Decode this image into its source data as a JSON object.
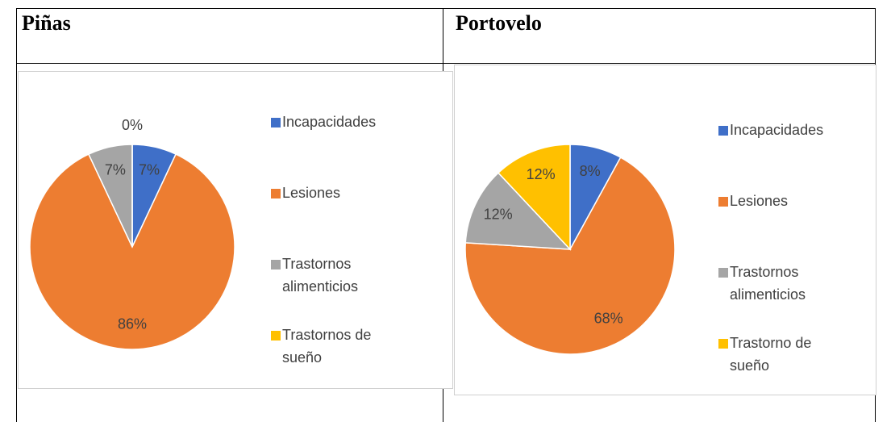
{
  "table": {
    "headers": [
      "Piñas",
      "Portovelo"
    ]
  },
  "chart_data": [
    {
      "type": "pie",
      "categories": [
        "Incapacidades",
        "Lesiones",
        "Trastornos alimenticios",
        "Trastornos de sueño"
      ],
      "values": [
        7,
        86,
        7,
        0
      ],
      "value_labels": [
        "7%",
        "86%",
        "7%",
        "0%"
      ],
      "colors": [
        "#3f6fc8",
        "#ed7d31",
        "#a5a5a5",
        "#ffc000"
      ]
    },
    {
      "type": "pie",
      "categories": [
        "Incapacidades",
        "Lesiones",
        "Trastornos alimenticios",
        "Trastorno de sueño"
      ],
      "values": [
        8,
        68,
        12,
        12
      ],
      "value_labels": [
        "8%",
        "68%",
        "12%",
        "12%"
      ],
      "colors": [
        "#3f6fc8",
        "#ed7d31",
        "#a5a5a5",
        "#ffc000"
      ]
    }
  ]
}
